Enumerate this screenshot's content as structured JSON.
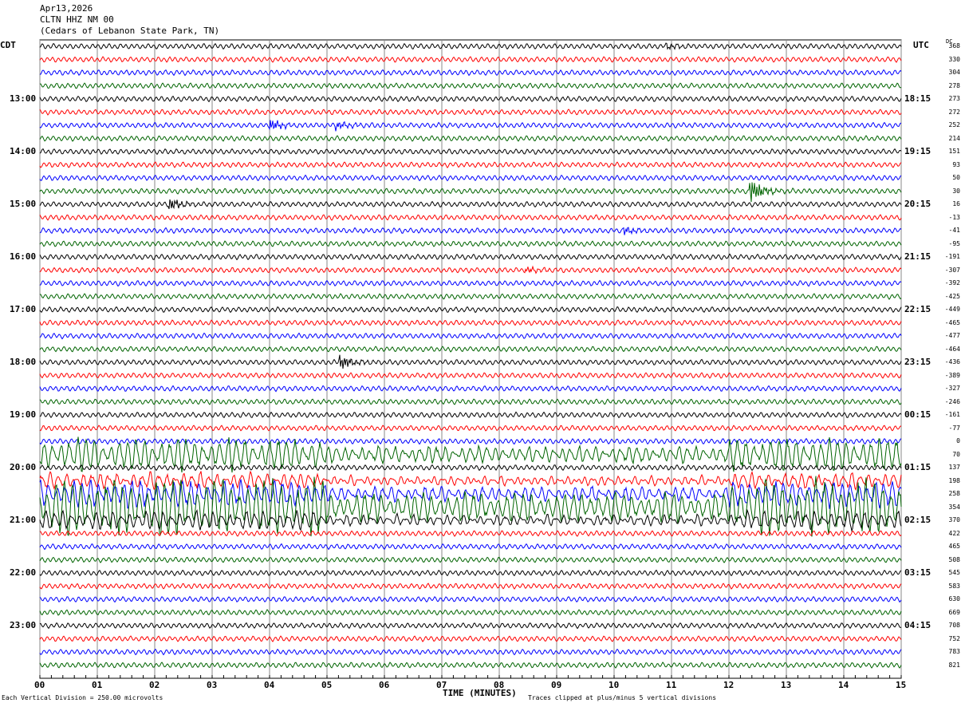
{
  "header": {
    "date": "Apr13,2026",
    "station": "CLTN HHZ NM 00",
    "location": "(Cedars of Lebanon State Park, TN)"
  },
  "left_tz": "CDT",
  "right_tz": "UTC",
  "dc_label": "DC",
  "footer": {
    "scale": "Each Vertical Division =  250.00 microvolts",
    "xlabel": "TIME (MINUTES)",
    "clip_note": "Traces clipped at plus/minus 5 vertical divisions"
  },
  "colors": [
    "#000000",
    "#ff0000",
    "#0000ff",
    "#006400"
  ],
  "chart_data": {
    "type": "line",
    "title": "CLTN HHZ NM 00",
    "xlabel": "TIME (MINUTES)",
    "xlim": [
      0,
      15
    ],
    "x_ticks": [
      "00",
      "01",
      "02",
      "03",
      "04",
      "05",
      "06",
      "07",
      "08",
      "09",
      "10",
      "11",
      "12",
      "13",
      "14",
      "15"
    ],
    "rows_per_hour": 4,
    "left_hour_labels": [
      {
        "row": 4,
        "label": "13:00"
      },
      {
        "row": 8,
        "label": "14:00"
      },
      {
        "row": 12,
        "label": "15:00"
      },
      {
        "row": 16,
        "label": "16:00"
      },
      {
        "row": 20,
        "label": "17:00"
      },
      {
        "row": 24,
        "label": "18:00"
      },
      {
        "row": 28,
        "label": "19:00"
      },
      {
        "row": 32,
        "label": "20:00"
      },
      {
        "row": 36,
        "label": "21:00"
      },
      {
        "row": 40,
        "label": "22:00"
      },
      {
        "row": 44,
        "label": "23:00"
      }
    ],
    "right_hour_labels": [
      {
        "row": 4,
        "label": "18:15"
      },
      {
        "row": 8,
        "label": "19:15"
      },
      {
        "row": 12,
        "label": "20:15"
      },
      {
        "row": 16,
        "label": "21:15"
      },
      {
        "row": 20,
        "label": "22:15"
      },
      {
        "row": 24,
        "label": "23:15"
      },
      {
        "row": 28,
        "label": "00:15"
      },
      {
        "row": 32,
        "label": "01:15"
      },
      {
        "row": 36,
        "label": "02:15"
      },
      {
        "row": 40,
        "label": "03:15"
      },
      {
        "row": 44,
        "label": "04:15"
      }
    ],
    "dc_offsets": [
      "368",
      "330",
      "304",
      "278",
      "273",
      "272",
      "252",
      "214",
      "151",
      "93",
      "50",
      "30",
      "16",
      "-13",
      "-41",
      "-95",
      "-191",
      "-307",
      "-392",
      "-425",
      "-449",
      "-465",
      "-477",
      "-464",
      "-436",
      "-389",
      "-327",
      "-246",
      "-161",
      "-77",
      "0",
      "70",
      "137",
      "198",
      "258",
      "354",
      "370",
      "422",
      "465",
      "508",
      "545",
      "583",
      "630",
      "669",
      "708",
      "752",
      "783",
      "821"
    ],
    "events": [
      {
        "row": 0,
        "minute": 10.9,
        "amp": 4
      },
      {
        "row": 6,
        "minute": 4.0,
        "amp": 9
      },
      {
        "row": 6,
        "minute": 5.15,
        "amp": 6
      },
      {
        "row": 12,
        "minute": 2.25,
        "amp": 9
      },
      {
        "row": 11,
        "minute": 12.35,
        "amp": 18
      },
      {
        "row": 14,
        "minute": 10.15,
        "amp": 6
      },
      {
        "row": 17,
        "minute": 8.45,
        "amp": 4
      },
      {
        "row": 24,
        "minute": 5.2,
        "amp": 12
      }
    ],
    "noisy_rows": [
      {
        "row": 31,
        "amp": 22
      },
      {
        "row": 34,
        "amp": 18
      },
      {
        "row": 35,
        "amp": 40
      },
      {
        "row": 36,
        "amp": 12
      },
      {
        "row": 33,
        "amp": 10
      }
    ]
  }
}
